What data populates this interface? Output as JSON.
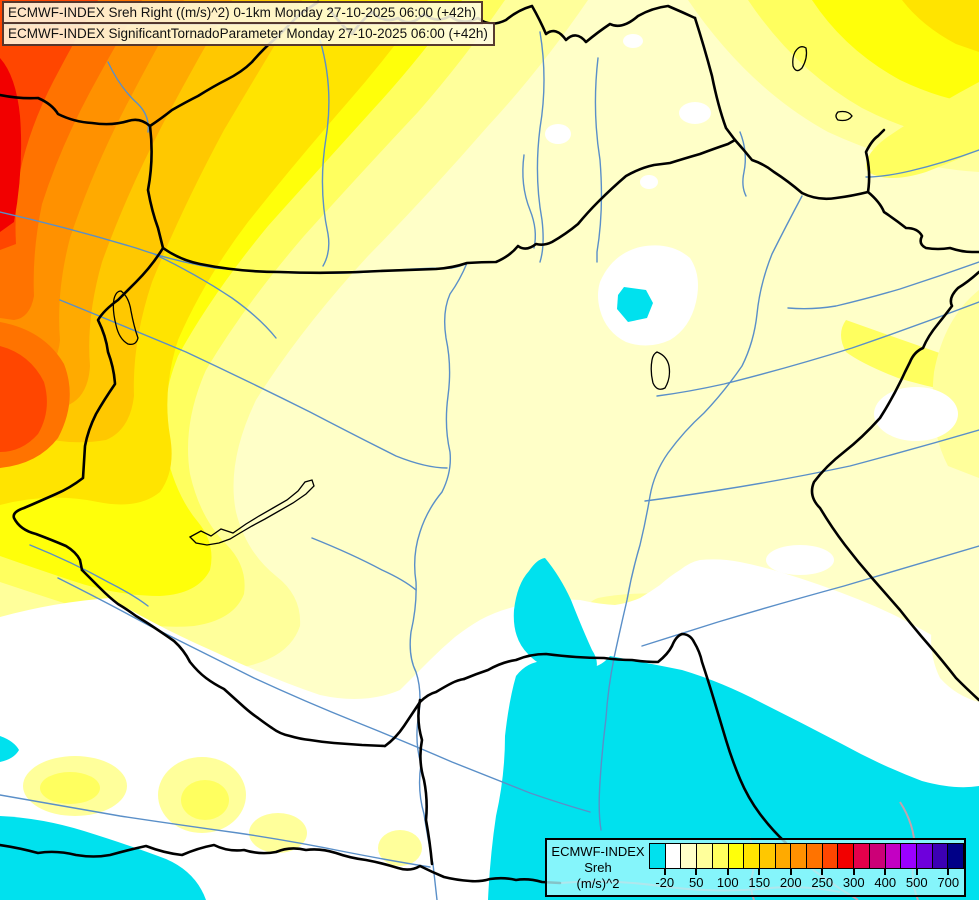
{
  "titles": {
    "line1": "ECMWF-INDEX Sreh Right ((m/s)^2) 0-1km Monday 27-10-2025 06:00 (+42h)",
    "line2": "ECMWF-INDEX SignificantTornadoParameter Monday 27-10-2025 06:00 (+42h)"
  },
  "legend": {
    "title_lines": [
      "ECMWF-INDEX",
      "Sreh",
      "(m/s)^2"
    ],
    "tick_labels": [
      "-20",
      "50",
      "100",
      "150",
      "200",
      "250",
      "300",
      "400",
      "500",
      "700"
    ],
    "tick_positions": [
      1,
      3,
      5,
      7,
      9,
      11,
      13,
      15,
      17,
      19
    ],
    "colors": [
      "#00E1EE",
      "#FFFFFF",
      "#FFFFC8",
      "#FFFF9B",
      "#FFFF5F",
      "#FFFF0A",
      "#FFE400",
      "#FFC800",
      "#FFAA00",
      "#FF9100",
      "#FF7300",
      "#FF4600",
      "#F20000",
      "#E4004B",
      "#CC0077",
      "#C300C3",
      "#9B00FF",
      "#6E00DC",
      "#3C00B4",
      "#000087"
    ]
  },
  "palette": {
    "cyan": "#00E1EE",
    "white": "#FFFFFF",
    "cream": "#FFFFC8",
    "pale_yellow": "#FFFF9B",
    "light_yellow": "#FFFF5F",
    "yellow": "#FFFF0A",
    "gold": "#FFE400",
    "amber": "#FFC800",
    "orange": "#FFAA00",
    "orange_deep": "#FF9100",
    "orange_red": "#FF7300",
    "red_orange": "#FF4600",
    "red": "#F20000",
    "river": "#5A8FC8",
    "border": "#000000",
    "border_faded": "#C2A3AD",
    "lake_outline": "#000000"
  }
}
